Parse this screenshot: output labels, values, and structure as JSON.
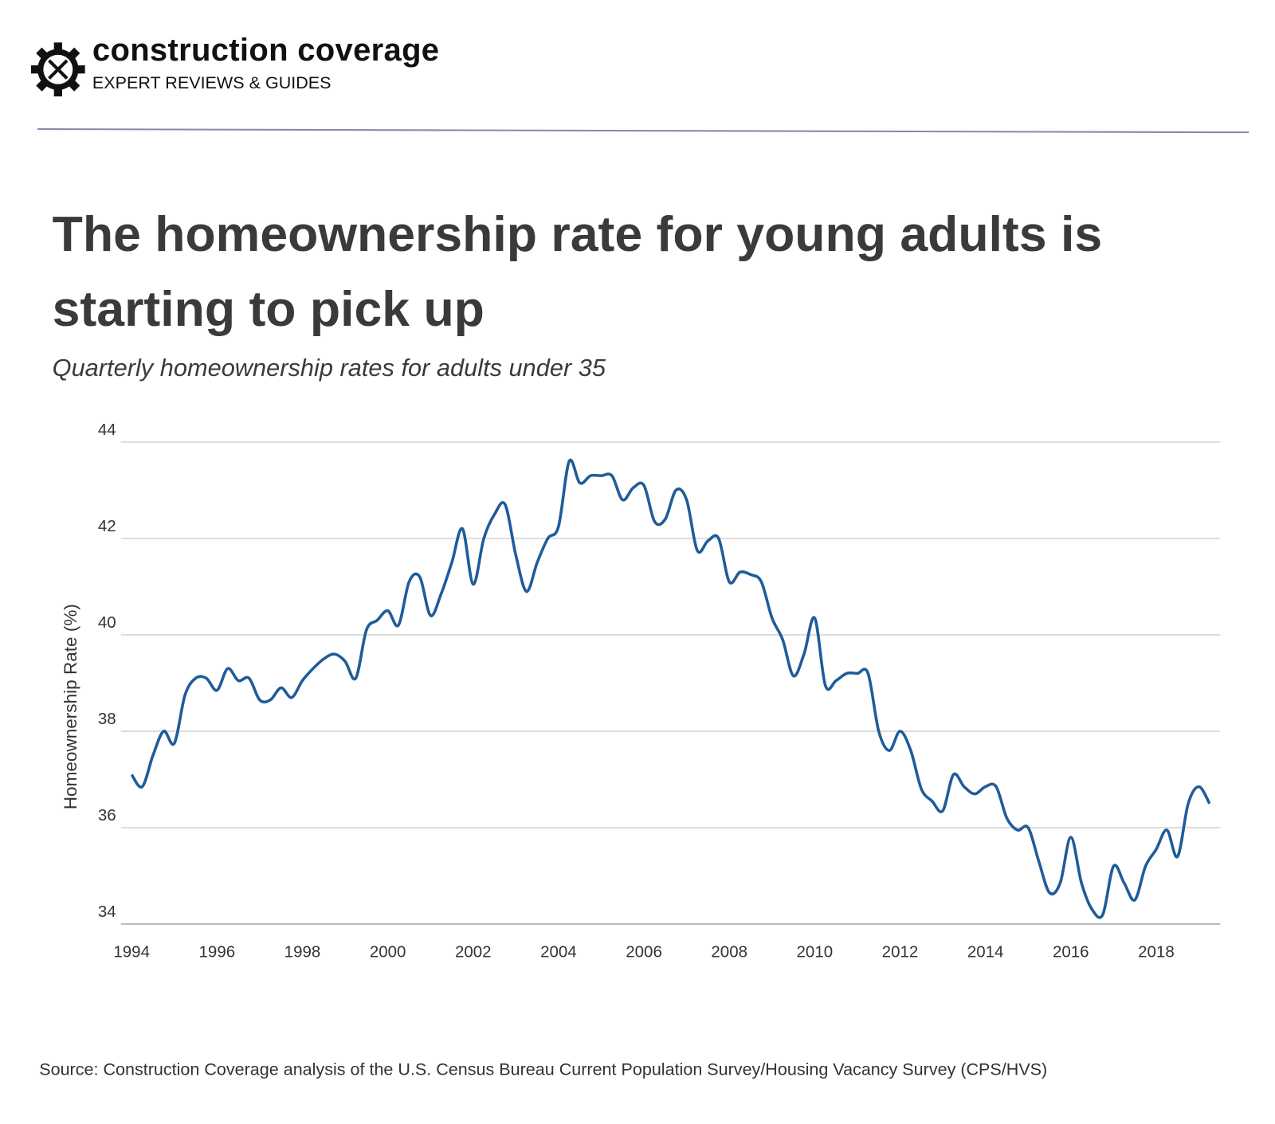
{
  "header": {
    "brand": "construction coverage",
    "tagline": "EXPERT REVIEWS & GUIDES"
  },
  "chart_data": {
    "type": "line",
    "title": "The homeownership rate for young adults is starting to pick up",
    "subtitle": "Quarterly homeownership rates for adults under 35",
    "y_label": "Homeownership Rate (%)",
    "source": "Source: Construction Coverage analysis of the U.S. Census Bureau Current Population Survey/Housing Vacancy Survey (CPS/HVS)",
    "color": "#1f5c99",
    "grid": true,
    "xlim": [
      1993.75,
      2019.5
    ],
    "xticks": [
      1994,
      1996,
      1998,
      2000,
      2002,
      2004,
      2006,
      2008,
      2010,
      2012,
      2014,
      2016,
      2018
    ],
    "ylim": [
      34,
      44
    ],
    "yticks": [
      34,
      36,
      38,
      40,
      42,
      44
    ],
    "x": [
      1994,
      1994.25,
      1994.5,
      1994.75,
      1995,
      1995.25,
      1995.5,
      1995.75,
      1996,
      1996.25,
      1996.5,
      1996.75,
      1997,
      1997.25,
      1997.5,
      1997.75,
      1998,
      1998.25,
      1998.5,
      1998.75,
      1999,
      1999.25,
      1999.5,
      1999.75,
      2000,
      2000.25,
      2000.5,
      2000.75,
      2001,
      2001.25,
      2001.5,
      2001.75,
      2002,
      2002.25,
      2002.5,
      2002.75,
      2003,
      2003.25,
      2003.5,
      2003.75,
      2004,
      2004.25,
      2004.5,
      2004.75,
      2005,
      2005.25,
      2005.5,
      2005.75,
      2006,
      2006.25,
      2006.5,
      2006.75,
      2007,
      2007.25,
      2007.5,
      2007.75,
      2008,
      2008.25,
      2008.5,
      2008.75,
      2009,
      2009.25,
      2009.5,
      2009.75,
      2010,
      2010.25,
      2010.5,
      2010.75,
      2011,
      2011.25,
      2011.5,
      2011.75,
      2012,
      2012.25,
      2012.5,
      2012.75,
      2013,
      2013.25,
      2013.5,
      2013.75,
      2014,
      2014.25,
      2014.5,
      2014.75,
      2015,
      2015.25,
      2015.5,
      2015.75,
      2016,
      2016.25,
      2016.5,
      2016.75,
      2017,
      2017.25,
      2017.5,
      2017.75,
      2018,
      2018.25,
      2018.5,
      2018.75,
      2019,
      2019.25
    ],
    "values": [
      37.1,
      36.85,
      37.5,
      38.0,
      37.75,
      38.75,
      39.1,
      39.1,
      38.85,
      39.3,
      39.05,
      39.1,
      38.65,
      38.65,
      38.9,
      38.7,
      39.05,
      39.3,
      39.5,
      39.6,
      39.45,
      39.1,
      40.1,
      40.3,
      40.5,
      40.2,
      41.1,
      41.2,
      40.4,
      40.85,
      41.5,
      42.2,
      41.05,
      42.0,
      42.5,
      42.7,
      41.65,
      40.9,
      41.5,
      42.0,
      42.25,
      43.6,
      43.15,
      43.3,
      43.3,
      43.3,
      42.8,
      43.05,
      43.1,
      42.35,
      42.4,
      43.0,
      42.8,
      41.75,
      41.95,
      42.0,
      41.1,
      41.3,
      41.25,
      41.1,
      40.35,
      39.9,
      39.15,
      39.6,
      40.35,
      38.95,
      39.05,
      39.2,
      39.2,
      39.2,
      38.0,
      37.6,
      38.0,
      37.6,
      36.8,
      36.55,
      36.35,
      37.1,
      36.85,
      36.7,
      36.85,
      36.85,
      36.2,
      35.95,
      36.0,
      35.3,
      34.65,
      34.85,
      35.8,
      34.85,
      34.3,
      34.2,
      35.2,
      34.85,
      34.5,
      35.2,
      35.55,
      35.95,
      35.4,
      36.5,
      36.85,
      36.5
    ]
  }
}
